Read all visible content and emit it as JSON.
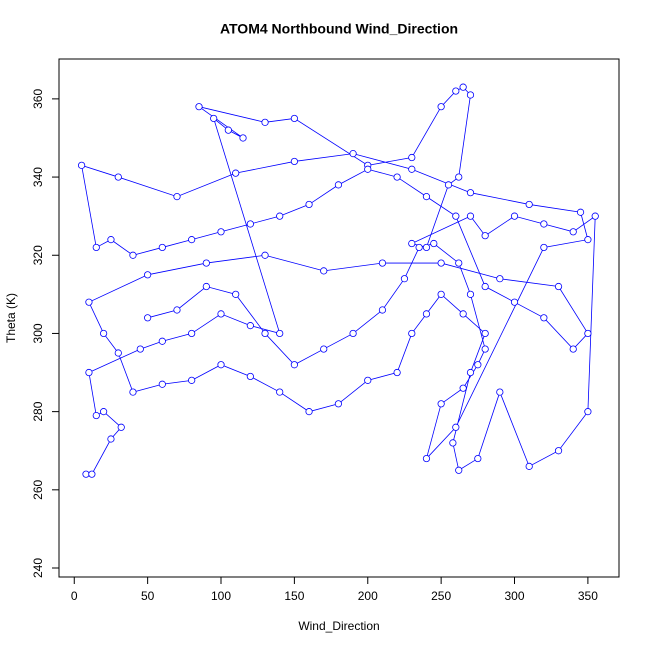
{
  "chart_data": {
    "type": "line",
    "title": "ATOM4 Northbound Wind_Direction",
    "x_label": "Wind_Direction",
    "y_label": "Theta (K)",
    "color": "#0000ff",
    "markers": true,
    "xlim": [
      -10.4,
      371.2
    ],
    "ylim": [
      237.7,
      370.2
    ],
    "xticks": [
      0,
      50,
      100,
      150,
      200,
      250,
      300,
      350
    ],
    "yticks": [
      240,
      260,
      280,
      300,
      320,
      340,
      360
    ],
    "x": [
      8,
      12,
      25,
      32,
      20,
      15,
      10,
      45,
      60,
      80,
      100,
      120,
      140,
      95,
      105,
      115,
      85,
      130,
      150,
      200,
      230,
      250,
      260,
      265,
      270,
      262,
      255,
      240,
      230,
      270,
      280,
      300,
      320,
      340,
      355,
      350,
      330,
      310,
      290,
      275,
      262,
      258,
      270,
      280,
      265,
      250,
      240,
      230,
      220,
      200,
      180,
      160,
      140,
      120,
      100,
      80,
      60,
      40,
      30,
      20,
      10,
      50,
      90,
      130,
      170,
      210,
      250,
      290,
      330,
      350,
      340,
      320,
      300,
      280,
      260,
      240,
      220,
      200,
      180,
      160,
      140,
      120,
      100,
      80,
      60,
      40,
      25,
      15,
      5,
      30,
      70,
      110,
      150,
      190,
      230,
      270,
      310,
      345,
      350,
      320,
      260,
      240,
      250,
      265,
      275,
      280,
      270,
      262,
      245,
      235,
      225,
      210,
      190,
      170,
      150,
      130,
      110,
      90,
      70,
      50
    ],
    "values": [
      264,
      264,
      273,
      276,
      280,
      279,
      290,
      296,
      298,
      300,
      305,
      302,
      300,
      355,
      352,
      350,
      358,
      354,
      355,
      343,
      345,
      358,
      362,
      363,
      361,
      340,
      338,
      322,
      323,
      330,
      325,
      330,
      328,
      326,
      330,
      280,
      270,
      266,
      285,
      268,
      265,
      272,
      290,
      300,
      305,
      310,
      305,
      300,
      290,
      288,
      282,
      280,
      285,
      289,
      292,
      288,
      287,
      285,
      295,
      300,
      308,
      315,
      318,
      320,
      316,
      318,
      318,
      314,
      312,
      300,
      296,
      304,
      308,
      312,
      330,
      335,
      340,
      342,
      338,
      333,
      330,
      328,
      326,
      324,
      322,
      320,
      324,
      322,
      343,
      340,
      335,
      341,
      344,
      346,
      342,
      336,
      333,
      331,
      324,
      322,
      276,
      268,
      282,
      286,
      292,
      296,
      310,
      318,
      323,
      322,
      314,
      306,
      300,
      296,
      292,
      300,
      310,
      312,
      306,
      304
    ]
  }
}
